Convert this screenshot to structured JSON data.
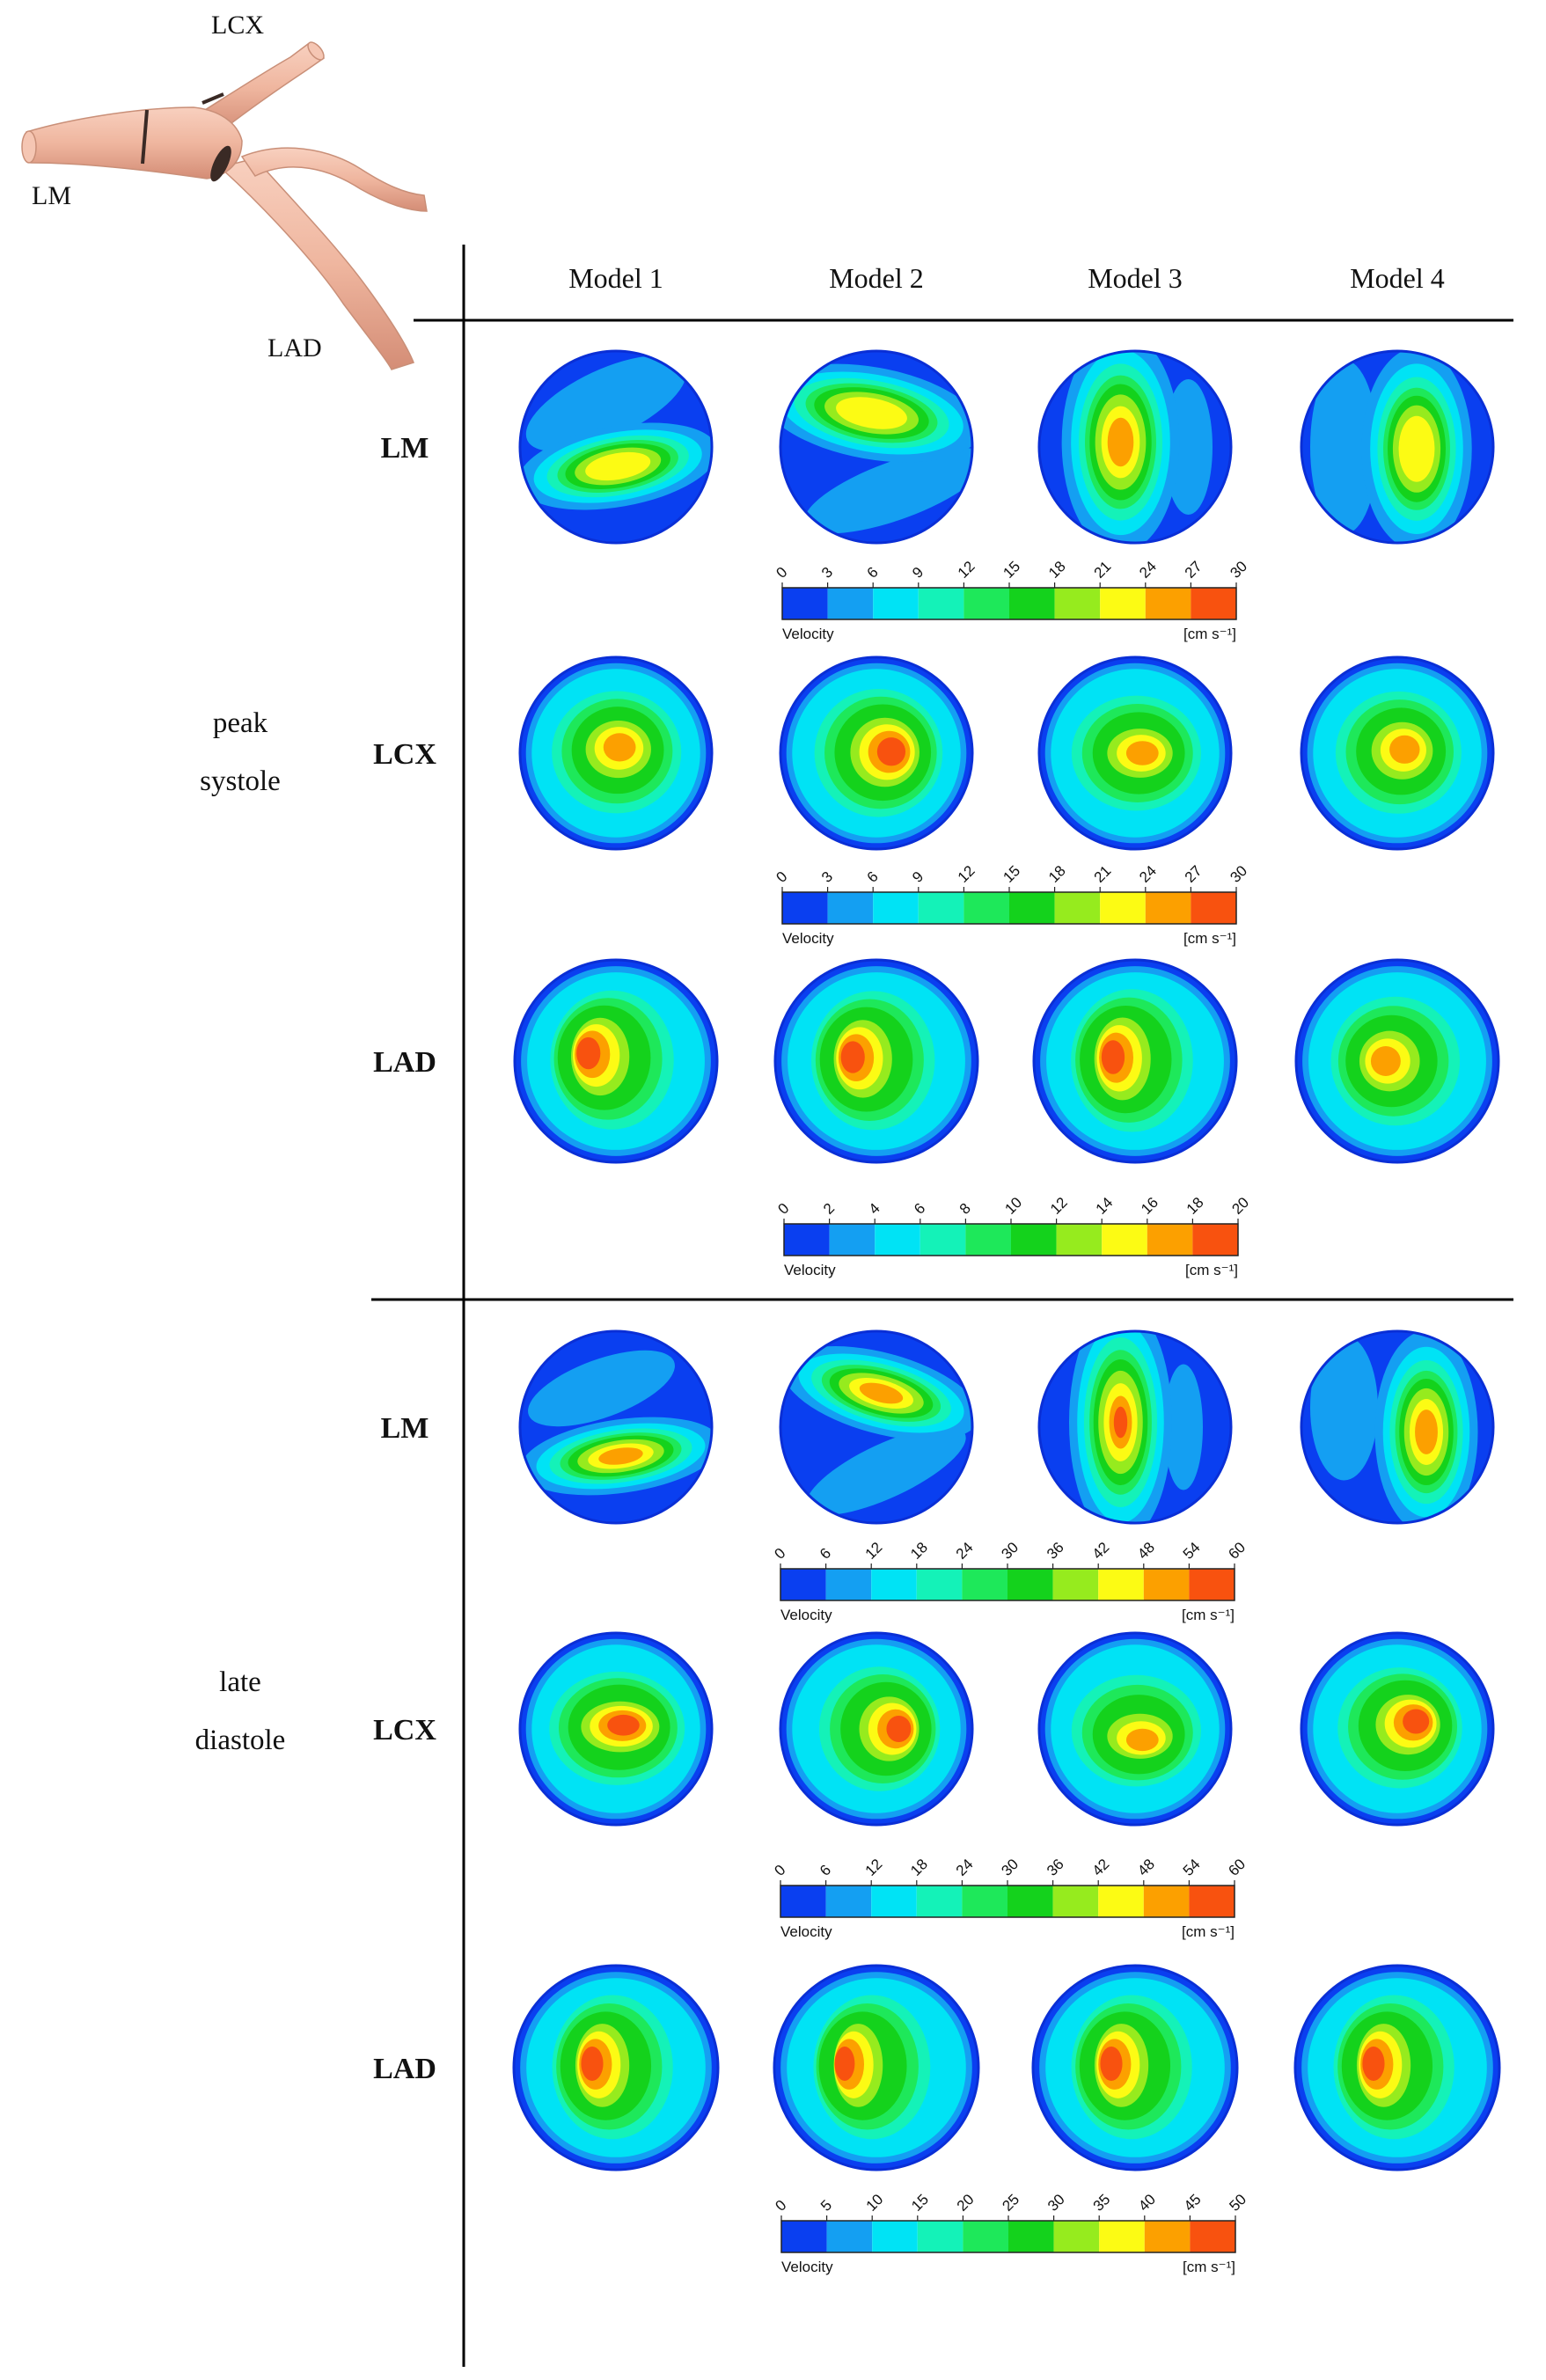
{
  "anatomy": {
    "labels": {
      "lcx": "LCX",
      "lm": "LM",
      "lad": "LAD"
    }
  },
  "columns": [
    "Model 1",
    "Model 2",
    "Model 3",
    "Model 4"
  ],
  "phases": [
    {
      "id": "peak-systole",
      "lines": [
        "peak",
        "systole"
      ]
    },
    {
      "id": "late-diastole",
      "lines": [
        "late",
        "diastole"
      ]
    }
  ],
  "rows": [
    {
      "label": "LM",
      "phase": 0,
      "scale": 0
    },
    {
      "label": "LCX",
      "phase": 0,
      "scale": 1
    },
    {
      "label": "LAD",
      "phase": 0,
      "scale": 2
    },
    {
      "label": "LM",
      "phase": 1,
      "scale": 3
    },
    {
      "label": "LCX",
      "phase": 1,
      "scale": 4
    },
    {
      "label": "LAD",
      "phase": 1,
      "scale": 5
    }
  ],
  "colorbars": [
    {
      "ticks": [
        "0",
        "3",
        "6",
        "9",
        "12",
        "15",
        "18",
        "21",
        "24",
        "27",
        "30"
      ],
      "label": "Velocity",
      "unit": "[cm s⁻¹]"
    },
    {
      "ticks": [
        "0",
        "3",
        "6",
        "9",
        "12",
        "15",
        "18",
        "21",
        "24",
        "27",
        "30"
      ],
      "label": "Velocity",
      "unit": "[cm s⁻¹]"
    },
    {
      "ticks": [
        "0",
        "2",
        "4",
        "6",
        "8",
        "10",
        "12",
        "14",
        "16",
        "18",
        "20"
      ],
      "label": "Velocity",
      "unit": "[cm s⁻¹]"
    },
    {
      "ticks": [
        "0",
        "6",
        "12",
        "18",
        "24",
        "30",
        "36",
        "42",
        "48",
        "54",
        "60"
      ],
      "label": "Velocity",
      "unit": "[cm s⁻¹]"
    },
    {
      "ticks": [
        "0",
        "6",
        "12",
        "18",
        "24",
        "30",
        "36",
        "42",
        "48",
        "54",
        "60"
      ],
      "label": "Velocity",
      "unit": "[cm s⁻¹]"
    },
    {
      "ticks": [
        "0",
        "5",
        "10",
        "15",
        "20",
        "25",
        "30",
        "35",
        "40",
        "45",
        "50"
      ],
      "label": "Velocity",
      "unit": "[cm s⁻¹]"
    }
  ],
  "palette": [
    "#0a3ff0",
    "#149ff2",
    "#00e3f5",
    "#14f2b8",
    "#1ee85a",
    "#14d21c",
    "#96eb1e",
    "#fcfb14",
    "#fca000",
    "#f8520f"
  ]
}
